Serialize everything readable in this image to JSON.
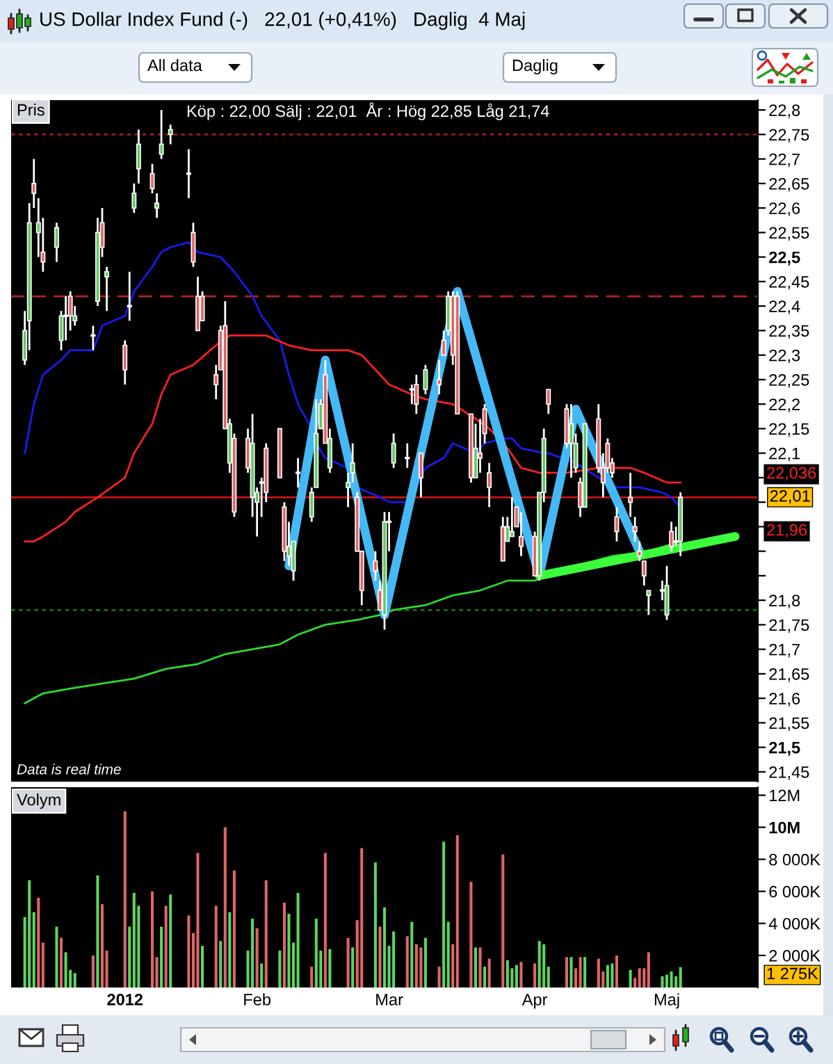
{
  "chart_data": [
    {
      "type": "candlestick",
      "title": "US Dollar Index Fund (-)   22,01 (+0,41%)   Daglig  4 Maj",
      "subtitle": "Köp : 22,00 Sälj : 22,01  År : Hög 22,85 Låg 21,74",
      "annotations": [
        "All data",
        "Daglig",
        "Pris",
        "Data is real time",
        "22,036",
        "21,96"
      ],
      "x": [
        "2011-12-12",
        "2011-12-13",
        "2011-12-14",
        "2011-12-15",
        "2011-12-16",
        "2011-12-19",
        "2011-12-20",
        "2011-12-21",
        "2011-12-22",
        "2011-12-23",
        "2011-12-27",
        "2011-12-28",
        "2011-12-29",
        "2011-12-30",
        "2012-01-03",
        "2012-01-04",
        "2012-01-05",
        "2012-01-06",
        "2012-01-09",
        "2012-01-10",
        "2012-01-11",
        "2012-01-13",
        "2012-01-17",
        "2012-01-18",
        "2012-01-19",
        "2012-01-20",
        "2012-01-23",
        "2012-01-24",
        "2012-01-25",
        "2012-01-26",
        "2012-01-27",
        "2012-01-30",
        "2012-01-31",
        "2012-02-01",
        "2012-02-02",
        "2012-02-03",
        "2012-02-06",
        "2012-02-07",
        "2012-02-08",
        "2012-02-09",
        "2012-02-10",
        "2012-02-13",
        "2012-02-14",
        "2012-02-15",
        "2012-02-16",
        "2012-02-17",
        "2012-02-21",
        "2012-02-22",
        "2012-02-23",
        "2012-02-24",
        "2012-02-27",
        "2012-02-28",
        "2012-02-29",
        "2012-03-01",
        "2012-03-02",
        "2012-03-05",
        "2012-03-06",
        "2012-03-07",
        "2012-03-08",
        "2012-03-09",
        "2012-03-12",
        "2012-03-13",
        "2012-03-14",
        "2012-03-15",
        "2012-03-16",
        "2012-03-19",
        "2012-03-20",
        "2012-03-21",
        "2012-03-22",
        "2012-03-23",
        "2012-03-26",
        "2012-03-27",
        "2012-03-28",
        "2012-03-29",
        "2012-03-30",
        "2012-04-02",
        "2012-04-03",
        "2012-04-04",
        "2012-04-05",
        "2012-04-09",
        "2012-04-10",
        "2012-04-11",
        "2012-04-12",
        "2012-04-13",
        "2012-04-16",
        "2012-04-17",
        "2012-04-18",
        "2012-04-19",
        "2012-04-20",
        "2012-04-23",
        "2012-04-24",
        "2012-04-25",
        "2012-04-26",
        "2012-04-27",
        "2012-04-30",
        "2012-05-01",
        "2012-05-02",
        "2012-05-03",
        "2012-05-04"
      ],
      "ohlc": [
        [
          22.29,
          22.39,
          22.28,
          22.35
        ],
        [
          22.37,
          22.61,
          22.31,
          22.57
        ],
        [
          22.65,
          22.7,
          22.6,
          22.63
        ],
        [
          22.55,
          22.62,
          22.5,
          22.57
        ],
        [
          22.51,
          22.58,
          22.47,
          22.49
        ],
        [
          22.52,
          22.57,
          22.49,
          22.56
        ],
        [
          22.33,
          22.39,
          22.31,
          22.38
        ],
        [
          22.38,
          22.42,
          22.33,
          22.38
        ],
        [
          22.42,
          22.43,
          22.35,
          22.38
        ],
        [
          22.37,
          22.4,
          22.36,
          22.38
        ],
        [
          22.34,
          22.36,
          22.31,
          22.34
        ],
        [
          22.41,
          22.58,
          22.4,
          22.55
        ],
        [
          22.57,
          22.6,
          22.5,
          22.52
        ],
        [
          22.46,
          22.48,
          22.39,
          22.47
        ],
        [
          22.32,
          22.33,
          22.24,
          22.27
        ],
        [
          22.4,
          22.47,
          22.37,
          22.4
        ],
        [
          22.6,
          22.65,
          22.59,
          22.63
        ],
        [
          22.68,
          22.76,
          22.65,
          22.73
        ],
        [
          22.67,
          22.69,
          22.63,
          22.64
        ],
        [
          22.6,
          22.63,
          22.58,
          22.61
        ],
        [
          22.71,
          22.8,
          22.7,
          22.73
        ],
        [
          22.75,
          22.77,
          22.73,
          22.76
        ],
        [
          22.67,
          22.72,
          22.62,
          22.67
        ],
        [
          22.55,
          22.57,
          22.48,
          22.49
        ],
        [
          22.42,
          22.46,
          22.35,
          22.35
        ],
        [
          22.42,
          22.43,
          22.37,
          22.37
        ],
        [
          22.26,
          22.28,
          22.21,
          22.24
        ],
        [
          22.35,
          22.36,
          22.27,
          22.27
        ],
        [
          22.36,
          22.41,
          22.15,
          22.15
        ],
        [
          22.08,
          22.17,
          22.06,
          22.16
        ],
        [
          22.13,
          22.14,
          21.97,
          21.98
        ],
        [
          22.13,
          22.15,
          22.06,
          22.07
        ],
        [
          22.01,
          22.18,
          21.97,
          22.12
        ],
        [
          22.0,
          22.03,
          21.93,
          22.02
        ],
        [
          22.04,
          22.05,
          21.97,
          22.04
        ],
        [
          22.11,
          22.12,
          22.0,
          22.02
        ],
        [
          22.15,
          22.15,
          22.05,
          22.05
        ],
        [
          21.99,
          22.0,
          21.88,
          21.9
        ],
        [
          21.89,
          21.96,
          21.87,
          21.91
        ],
        [
          21.86,
          21.92,
          21.84,
          21.92
        ],
        [
          22.06,
          22.09,
          22.03,
          22.06
        ],
        [
          21.97,
          22.03,
          21.96,
          22.02
        ],
        [
          22.03,
          22.21,
          22.03,
          22.14
        ],
        [
          22.15,
          22.21,
          22.15,
          22.2
        ],
        [
          22.26,
          22.29,
          22.12,
          22.12
        ],
        [
          22.07,
          22.15,
          22.06,
          22.13
        ],
        [
          22.03,
          22.06,
          21.99,
          22.04
        ],
        [
          22.06,
          22.12,
          22.04,
          22.08
        ],
        [
          22.01,
          22.02,
          21.9,
          21.9
        ],
        [
          21.9,
          21.9,
          21.79,
          21.82
        ],
        [
          21.88,
          21.9,
          21.84,
          21.86
        ],
        [
          21.82,
          21.84,
          21.78,
          21.78
        ],
        [
          21.77,
          21.98,
          21.74,
          21.96
        ],
        [
          21.96,
          21.98,
          21.9,
          21.96
        ],
        [
          22.08,
          22.14,
          22.07,
          22.12
        ],
        [
          22.09,
          22.12,
          22.07,
          22.09
        ],
        [
          22.23,
          22.24,
          22.2,
          22.23
        ],
        [
          22.24,
          22.26,
          22.18,
          22.2
        ],
        [
          22.1,
          22.1,
          22.01,
          22.05
        ],
        [
          22.23,
          22.28,
          22.22,
          22.27
        ],
        [
          22.25,
          22.29,
          22.22,
          22.24
        ],
        [
          22.33,
          22.35,
          22.3,
          22.3
        ],
        [
          22.35,
          22.43,
          22.34,
          22.42
        ],
        [
          22.42,
          22.43,
          22.28,
          22.3
        ],
        [
          22.42,
          22.43,
          22.18,
          22.18
        ],
        [
          22.18,
          22.18,
          22.04,
          22.05
        ],
        [
          22.05,
          22.16,
          22.05,
          22.11
        ],
        [
          22.1,
          22.17,
          22.06,
          22.09
        ],
        [
          22.19,
          22.2,
          22.12,
          22.14
        ],
        [
          22.06,
          22.08,
          21.99,
          22.03
        ],
        [
          21.95,
          21.97,
          21.88,
          21.88
        ],
        [
          21.92,
          21.97,
          21.92,
          21.95
        ],
        [
          21.93,
          22.01,
          21.93,
          21.94
        ],
        [
          21.99,
          21.99,
          21.95,
          21.95
        ],
        [
          21.93,
          21.98,
          21.89,
          21.91
        ],
        [
          21.93,
          21.94,
          21.85,
          21.85
        ],
        [
          21.85,
          22.02,
          21.84,
          22.02
        ],
        [
          22.02,
          22.15,
          22.0,
          22.13
        ],
        [
          22.23,
          22.23,
          22.18,
          22.2
        ],
        [
          22.19,
          22.2,
          22.11,
          22.12
        ],
        [
          22.12,
          22.2,
          22.05,
          22.16
        ],
        [
          22.07,
          22.14,
          22.06,
          22.12
        ],
        [
          22.04,
          22.05,
          21.97,
          21.99
        ],
        [
          21.99,
          22.16,
          21.99,
          22.16
        ],
        [
          22.17,
          22.2,
          22.06,
          22.07
        ],
        [
          22.07,
          22.1,
          22.01,
          22.04
        ],
        [
          22.12,
          22.13,
          22.06,
          22.07
        ],
        [
          22.08,
          22.09,
          22.05,
          22.06
        ],
        [
          21.97,
          21.99,
          21.92,
          21.94
        ],
        [
          22.01,
          22.06,
          21.97,
          22.0
        ],
        [
          21.95,
          21.97,
          21.92,
          21.94
        ],
        [
          21.9,
          21.92,
          21.88,
          21.89
        ],
        [
          21.88,
          21.88,
          21.83,
          21.85
        ],
        [
          21.81,
          21.82,
          21.77,
          21.82
        ],
        [
          21.82,
          21.84,
          21.8,
          21.82
        ],
        [
          21.77,
          21.87,
          21.76,
          21.83
        ],
        [
          21.94,
          21.96,
          21.9,
          21.91
        ],
        [
          21.92,
          21.95,
          21.91,
          21.92
        ],
        [
          21.92,
          22.02,
          21.89,
          22.01
        ]
      ],
      "colors": [
        "#62c862",
        "#62c862",
        "#e06464",
        "#62c862",
        "#e06464",
        "#62c862",
        "#62c862",
        "#ffffff",
        "#e06464",
        "#62c862",
        "#ffffff",
        "#62c862",
        "#e06464",
        "#62c862",
        "#e06464",
        "#ffffff",
        "#62c862",
        "#62c862",
        "#e06464",
        "#62c862",
        "#62c862",
        "#62c862",
        "#ffffff",
        "#e06464",
        "#e06464",
        "#e06464",
        "#e06464",
        "#e06464",
        "#e06464",
        "#62c862",
        "#e06464",
        "#e06464",
        "#62c862",
        "#62c862",
        "#ffffff",
        "#e06464",
        "#e06464",
        "#e06464",
        "#62c862",
        "#62c862",
        "#ffffff",
        "#62c862",
        "#62c862",
        "#62c862",
        "#e06464",
        "#62c862",
        "#62c862",
        "#62c862",
        "#e06464",
        "#e06464",
        "#e06464",
        "#e06464",
        "#62c862",
        "#ffffff",
        "#62c862",
        "#ffffff",
        "#ffffff",
        "#e06464",
        "#e06464",
        "#62c862",
        "#e06464",
        "#e06464",
        "#62c862",
        "#e06464",
        "#e06464",
        "#e06464",
        "#62c862",
        "#e06464",
        "#e06464",
        "#e06464",
        "#e06464",
        "#62c862",
        "#62c862",
        "#e06464",
        "#e06464",
        "#e06464",
        "#62c862",
        "#62c862",
        "#e06464",
        "#e06464",
        "#62c862",
        "#62c862",
        "#e06464",
        "#62c862",
        "#e06464",
        "#e06464",
        "#e06464",
        "#e06464",
        "#e06464",
        "#e06464",
        "#e06464",
        "#e06464",
        "#e06464",
        "#62c862",
        "#ffffff",
        "#62c862",
        "#e06464",
        "#ffffff",
        "#62c862"
      ],
      "series": [
        {
          "type": "line",
          "color": "#1a1aee",
          "x": [
            "2011-12-12",
            "2011-12-14",
            "2011-12-16",
            "2011-12-20",
            "2011-12-22",
            "2011-12-27",
            "2011-12-29",
            "2012-01-03",
            "2012-01-05",
            "2012-01-09",
            "2012-01-11",
            "2012-01-13",
            "2012-01-17",
            "2012-01-19",
            "2012-01-24",
            "2012-01-27",
            "2012-01-31",
            "2012-02-02",
            "2012-02-06",
            "2012-02-08",
            "2012-02-10",
            "2012-02-13",
            "2012-02-14",
            "2012-02-16",
            "2012-02-21",
            "2012-02-23",
            "2012-02-28",
            "2012-03-01",
            "2012-03-05",
            "2012-03-07",
            "2012-03-09",
            "2012-03-13",
            "2012-03-15",
            "2012-03-20",
            "2012-03-22",
            "2012-03-26",
            "2012-03-28",
            "2012-03-30",
            "2012-04-04",
            "2012-04-05",
            "2012-04-11",
            "2012-04-16",
            "2012-04-18",
            "2012-04-20",
            "2012-04-25",
            "2012-04-30",
            "2012-05-02",
            "2012-05-04"
          ],
          "values": [
            22.1,
            22.2,
            22.26,
            22.29,
            22.31,
            22.31,
            22.36,
            22.38,
            22.43,
            22.48,
            22.51,
            22.52,
            22.53,
            22.51,
            22.5,
            22.47,
            22.42,
            22.38,
            22.33,
            22.26,
            22.2,
            22.15,
            22.12,
            22.09,
            22.07,
            22.03,
            22.01,
            22.0,
            22.0,
            22.03,
            22.07,
            22.09,
            22.12,
            22.1,
            22.12,
            22.13,
            22.13,
            22.11,
            22.1,
            22.1,
            22.08,
            22.05,
            22.04,
            22.03,
            22.03,
            22.02,
            22.01,
            21.99
          ]
        },
        {
          "type": "line",
          "color": "#ff2020",
          "x": [
            "2011-12-12",
            "2011-12-14",
            "2011-12-16",
            "2011-12-21",
            "2011-12-23",
            "2011-12-28",
            "2012-01-03",
            "2012-01-05",
            "2012-01-09",
            "2012-01-11",
            "2012-01-13",
            "2012-01-18",
            "2012-01-23",
            "2012-01-26",
            "2012-01-31",
            "2012-02-03",
            "2012-02-08",
            "2012-02-13",
            "2012-02-15",
            "2012-02-21",
            "2012-02-24",
            "2012-02-28",
            "2012-03-01",
            "2012-03-06",
            "2012-03-09",
            "2012-03-15",
            "2012-03-20",
            "2012-03-23",
            "2012-03-27",
            "2012-03-30",
            "2012-04-03",
            "2012-04-09",
            "2012-04-16",
            "2012-04-23",
            "2012-04-26",
            "2012-05-01",
            "2012-05-04"
          ],
          "values": [
            21.92,
            21.92,
            21.93,
            21.96,
            21.98,
            22.01,
            22.05,
            22.1,
            22.16,
            22.22,
            22.26,
            22.28,
            22.32,
            22.34,
            22.34,
            22.34,
            22.32,
            22.31,
            22.31,
            22.31,
            22.3,
            22.26,
            22.24,
            22.22,
            22.21,
            22.2,
            22.17,
            22.15,
            22.11,
            22.07,
            22.06,
            22.06,
            22.07,
            22.07,
            22.06,
            22.04,
            22.04
          ]
        },
        {
          "type": "line",
          "color": "#2ed82e",
          "x": [
            "2011-12-12",
            "2011-12-16",
            "2011-12-22",
            "2011-12-29",
            "2012-01-05",
            "2012-01-12",
            "2012-01-19",
            "2012-01-25",
            "2012-01-31",
            "2012-02-06",
            "2012-02-10",
            "2012-02-16",
            "2012-02-23",
            "2012-02-28",
            "2012-03-02",
            "2012-03-09",
            "2012-03-15",
            "2012-03-21",
            "2012-03-27",
            "2012-04-02",
            "2012-04-05",
            "2012-04-11",
            "2012-04-19",
            "2012-04-27",
            "2012-05-04"
          ],
          "values": [
            21.59,
            21.61,
            21.62,
            21.63,
            21.64,
            21.66,
            21.67,
            21.69,
            21.7,
            21.71,
            21.73,
            21.75,
            21.76,
            21.77,
            21.78,
            21.79,
            21.81,
            21.82,
            21.84,
            21.84,
            21.85,
            21.87,
            21.89,
            21.9,
            21.92
          ]
        },
        {
          "type": "line",
          "color": "#45b9f5",
          "x": [
            "2012-02-08",
            "2012-02-16",
            "2012-02-29",
            "2012-03-16",
            "2012-04-03",
            "2012-04-11",
            "2012-04-25"
          ],
          "values": [
            21.87,
            22.29,
            21.77,
            22.43,
            21.85,
            22.19,
            21.9
          ]
        },
        {
          "type": "line",
          "color": "#3cff3c",
          "x": [
            "2012-04-03",
            "2012-05-16"
          ],
          "values": [
            21.85,
            21.93
          ]
        }
      ],
      "ref_lines": [
        {
          "axis": "y",
          "value": 22.75,
          "color": "#a01c1c",
          "line_style": "dotted"
        },
        {
          "axis": "y",
          "value": 22.42,
          "color": "#b52020",
          "line_style": "dashed"
        },
        {
          "axis": "y",
          "value": 21.78,
          "color": "#1f6a1f",
          "line_style": "dotted"
        },
        {
          "axis": "y",
          "value": 22.01,
          "label": "22,01",
          "color": "#d01414",
          "line_style": "solid"
        }
      ],
      "xlim": [
        "2011-12-09",
        "2012-05-21"
      ],
      "ylim": [
        21.43,
        22.82
      ],
      "yticks": [
        {
          "value": 21.45,
          "label": "21,45"
        },
        {
          "value": 21.5,
          "label": "21,5"
        },
        {
          "value": 21.55,
          "label": "21,55"
        },
        {
          "value": 21.6,
          "label": "21,6"
        },
        {
          "value": 21.65,
          "label": "21,65"
        },
        {
          "value": 21.7,
          "label": "21,7"
        },
        {
          "value": 21.75,
          "label": "21,75"
        },
        {
          "value": 21.8,
          "label": "21,8"
        },
        {
          "value": 21.85,
          "label": null
        },
        {
          "value": 21.9,
          "label": null
        },
        {
          "value": 21.95,
          "label": null
        },
        {
          "value": 22.0,
          "label": null
        },
        {
          "value": 22.05,
          "label": null
        },
        {
          "value": 22.1,
          "label": "22,1"
        },
        {
          "value": 22.15,
          "label": "22,15"
        },
        {
          "value": 22.2,
          "label": "22,2"
        },
        {
          "value": 22.25,
          "label": "22,25"
        },
        {
          "value": 22.3,
          "label": "22,3"
        },
        {
          "value": 22.35,
          "label": "22,35"
        },
        {
          "value": 22.4,
          "label": "22,4"
        },
        {
          "value": 22.45,
          "label": "22,45"
        },
        {
          "value": 22.5,
          "label": "22,5"
        },
        {
          "value": 22.55,
          "label": "22,55"
        },
        {
          "value": 22.6,
          "label": "22,6"
        },
        {
          "value": 22.65,
          "label": "22,65"
        },
        {
          "value": 22.7,
          "label": "22,7"
        },
        {
          "value": 22.75,
          "label": "22,75"
        },
        {
          "value": 22.8,
          "label": "22,8"
        }
      ],
      "tick_labels": "y"
    },
    {
      "type": "bar",
      "title": "Volym",
      "annotations": [
        "1 275K"
      ],
      "x": [
        "2011-12-12",
        "2011-12-13",
        "2011-12-14",
        "2011-12-15",
        "2011-12-16",
        "2011-12-19",
        "2011-12-20",
        "2011-12-21",
        "2011-12-22",
        "2011-12-23",
        "2011-12-27",
        "2011-12-28",
        "2011-12-29",
        "2011-12-30",
        "2012-01-03",
        "2012-01-04",
        "2012-01-05",
        "2012-01-06",
        "2012-01-09",
        "2012-01-10",
        "2012-01-11",
        "2012-01-12",
        "2012-01-13",
        "2012-01-17",
        "2012-01-18",
        "2012-01-19",
        "2012-01-20",
        "2012-01-23",
        "2012-01-24",
        "2012-01-25",
        "2012-01-26",
        "2012-01-27",
        "2012-01-30",
        "2012-01-31",
        "2012-02-01",
        "2012-02-02",
        "2012-02-03",
        "2012-02-06",
        "2012-02-07",
        "2012-02-08",
        "2012-02-09",
        "2012-02-10",
        "2012-02-13",
        "2012-02-14",
        "2012-02-15",
        "2012-02-16",
        "2012-02-17",
        "2012-02-21",
        "2012-02-22",
        "2012-02-23",
        "2012-02-24",
        "2012-02-27",
        "2012-02-28",
        "2012-02-29",
        "2012-03-01",
        "2012-03-02",
        "2012-03-05",
        "2012-03-06",
        "2012-03-07",
        "2012-03-08",
        "2012-03-09",
        "2012-03-12",
        "2012-03-13",
        "2012-03-14",
        "2012-03-15",
        "2012-03-16",
        "2012-03-19",
        "2012-03-20",
        "2012-03-21",
        "2012-03-22",
        "2012-03-23",
        "2012-03-26",
        "2012-03-27",
        "2012-03-28",
        "2012-03-29",
        "2012-03-30",
        "2012-04-02",
        "2012-04-03",
        "2012-04-04",
        "2012-04-05",
        "2012-04-09",
        "2012-04-10",
        "2012-04-11",
        "2012-04-12",
        "2012-04-13",
        "2012-04-16",
        "2012-04-17",
        "2012-04-18",
        "2012-04-19",
        "2012-04-20",
        "2012-04-23",
        "2012-04-24",
        "2012-04-25",
        "2012-04-26",
        "2012-04-27",
        "2012-04-30",
        "2012-05-01",
        "2012-05-02",
        "2012-05-03",
        "2012-05-04"
      ],
      "values": [
        4400000,
        6700000,
        4700000,
        5600000,
        2800000,
        3800000,
        3100000,
        2200000,
        1100000,
        900000,
        2000000,
        7000000,
        5200000,
        2300000,
        11000000,
        3800000,
        5900000,
        5100000,
        6000000,
        1900000,
        3800000,
        5100000,
        5800000,
        4500000,
        3400000,
        8400000,
        2600000,
        5100000,
        2900000,
        10000000,
        4700000,
        7300000,
        2300000,
        4300000,
        3700000,
        1500000,
        6700000,
        2300000,
        5300000,
        4600000,
        2800000,
        5900000,
        1300000,
        4300000,
        2300000,
        8400000,
        2400000,
        3100000,
        2500000,
        4200000,
        8700000,
        7800000,
        3800000,
        5000000,
        2600000,
        3500000,
        3200000,
        4100000,
        2700000,
        2500000,
        3100000,
        1300000,
        9100000,
        4100000,
        2700000,
        9500000,
        6600000,
        2500000,
        2500000,
        1300000,
        1800000,
        8300000,
        1700000,
        1200000,
        1400000,
        1600000,
        1500000,
        2900000,
        2700000,
        1300000,
        1900000,
        1900000,
        1200000,
        1900000,
        1900000,
        1800000,
        1000000,
        1400000,
        1500000,
        2000000,
        1100000,
        600000,
        1200000,
        1200000,
        2200000,
        700000,
        800000,
        1000000,
        700000,
        1275000
      ],
      "colors": [
        "#5cd65c",
        "#5cd65c",
        "#5cd65c",
        "#e06666",
        "#e06666",
        "#5cd65c",
        "#e06666",
        "#5cd65c",
        "#5cd65c",
        "#5cd65c",
        "#e06666",
        "#5cd65c",
        "#e06666",
        "#e06666",
        "#e06666",
        "#5cd65c",
        "#5cd65c",
        "#5cd65c",
        "#e06666",
        "#e06666",
        "#5cd65c",
        "#e06666",
        "#5cd65c",
        "#e06666",
        "#e06666",
        "#e06666",
        "#5cd65c",
        "#e06666",
        "#5cd65c",
        "#e06666",
        "#5cd65c",
        "#e06666",
        "#5cd65c",
        "#5cd65c",
        "#e06666",
        "#5cd65c",
        "#e06666",
        "#5cd65c",
        "#e06666",
        "#5cd65c",
        "#5cd65c",
        "#5cd65c",
        "#e06666",
        "#5cd65c",
        "#5cd65c",
        "#e06666",
        "#5cd65c",
        "#e06666",
        "#5cd65c",
        "#e06666",
        "#e06666",
        "#5cd65c",
        "#e06666",
        "#5cd65c",
        "#5cd65c",
        "#5cd65c",
        "#e06666",
        "#5cd65c",
        "#e06666",
        "#e06666",
        "#5cd65c",
        "#e06666",
        "#5cd65c",
        "#5cd65c",
        "#e06666",
        "#e06666",
        "#e06666",
        "#5cd65c",
        "#e06666",
        "#5cd65c",
        "#e06666",
        "#e06666",
        "#5cd65c",
        "#5cd65c",
        "#5cd65c",
        "#e06666",
        "#e06666",
        "#5cd65c",
        "#5cd65c",
        "#5cd65c",
        "#e06666",
        "#5cd65c",
        "#e06666",
        "#e06666",
        "#5cd65c",
        "#e06666",
        "#e06666",
        "#5cd65c",
        "#5cd65c",
        "#e06666",
        "#5cd65c",
        "#e06666",
        "#e06666",
        "#e06666",
        "#e06666",
        "#5cd65c",
        "#5cd65c",
        "#5cd65c",
        "#5cd65c",
        "#5cd65c"
      ],
      "xlim": [
        "2011-12-09",
        "2012-05-21"
      ],
      "xticks": [
        {
          "value": "2012-01-03",
          "label": "2012"
        },
        {
          "value": "2012-02-01",
          "label": "Feb"
        },
        {
          "value": "2012-03-01",
          "label": "Mar"
        },
        {
          "value": "2012-04-02",
          "label": "Apr"
        },
        {
          "value": "2012-05-01",
          "label": "Maj"
        }
      ],
      "ylim": [
        0,
        12500000
      ],
      "yticks": [
        {
          "value": 2000000,
          "label": "2 000K"
        },
        {
          "value": 4000000,
          "label": "4 000K"
        },
        {
          "value": 6000000,
          "label": "6 000K"
        },
        {
          "value": 8000000,
          "label": "8 000K"
        },
        {
          "value": 10000000,
          "label": "10M"
        },
        {
          "value": 12000000,
          "label": "12M"
        }
      ]
    }
  ]
}
